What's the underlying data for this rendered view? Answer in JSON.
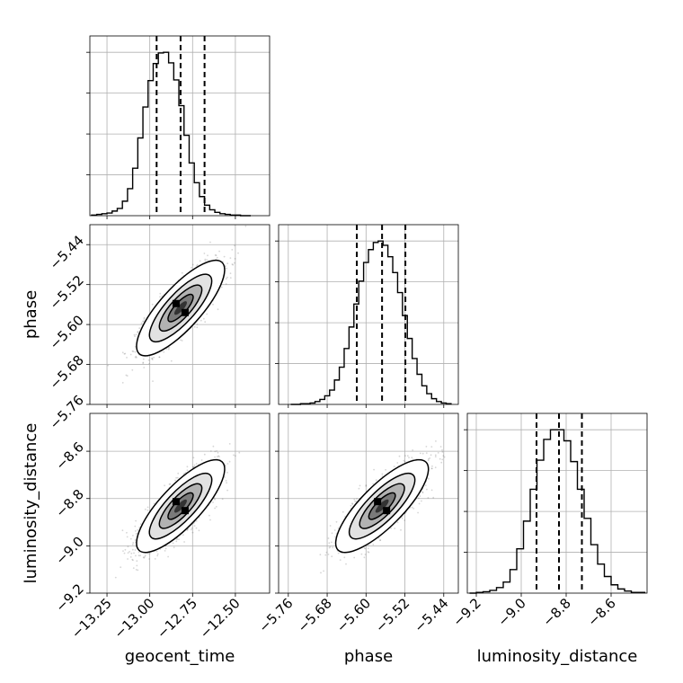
{
  "chart_data": {
    "type": "corner",
    "parameters": [
      "geocent_time",
      "phase",
      "luminosity_distance"
    ],
    "grid": true,
    "quantile_lines": "dashed",
    "histograms": [
      {
        "parameter": "geocent_time",
        "bins_x": [
          -13.34,
          -13.31,
          -13.28,
          -13.25,
          -13.22,
          -13.19,
          -13.16,
          -13.13,
          -13.1,
          -13.07,
          -13.04,
          -13.01,
          -12.98,
          -12.95,
          -12.92,
          -12.89,
          -12.86,
          -12.83,
          -12.8,
          -12.77,
          -12.74,
          -12.71,
          -12.68,
          -12.65,
          -12.62,
          -12.59,
          -12.56,
          -12.53,
          -12.5,
          -12.47,
          -12.44,
          -12.41
        ],
        "counts": [
          1,
          2,
          3,
          4,
          7,
          11,
          22,
          41,
          72,
          118,
          165,
          205,
          231,
          247,
          248,
          232,
          206,
          167,
          122,
          80,
          50,
          29,
          16,
          9,
          5,
          3,
          2,
          1,
          1,
          0,
          0
        ],
        "quantiles": [
          -12.96,
          -12.82,
          -12.68
        ],
        "xlim": [
          -13.35,
          -12.3
        ],
        "xticks": [
          -13.25,
          -13.0,
          -12.75,
          -12.5
        ]
      },
      {
        "parameter": "phase",
        "bins_x": [
          -5.755,
          -5.745,
          -5.735,
          -5.725,
          -5.715,
          -5.705,
          -5.695,
          -5.685,
          -5.675,
          -5.665,
          -5.655,
          -5.645,
          -5.635,
          -5.625,
          -5.615,
          -5.605,
          -5.595,
          -5.585,
          -5.575,
          -5.565,
          -5.555,
          -5.545,
          -5.535,
          -5.525,
          -5.515,
          -5.505,
          -5.495,
          -5.485,
          -5.475,
          -5.465,
          -5.455,
          -5.445,
          -5.435,
          -5.425
        ],
        "counts": [
          0,
          0,
          1,
          1,
          2,
          4,
          7,
          12,
          20,
          34,
          52,
          78,
          108,
          140,
          172,
          198,
          216,
          226,
          228,
          222,
          206,
          184,
          156,
          124,
          92,
          64,
          42,
          26,
          15,
          8,
          4,
          2,
          1
        ],
        "quantiles": [
          -5.619,
          -5.567,
          -5.519
        ],
        "xlim": [
          -5.78,
          -5.41
        ],
        "xticks": [
          -5.76,
          -5.68,
          -5.6,
          -5.52,
          -5.44
        ]
      },
      {
        "parameter": "luminosity_distance",
        "bins_x": [
          -9.23,
          -9.2,
          -9.17,
          -9.14,
          -9.11,
          -9.08,
          -9.05,
          -9.02,
          -8.99,
          -8.96,
          -8.93,
          -8.9,
          -8.87,
          -8.84,
          -8.81,
          -8.78,
          -8.75,
          -8.72,
          -8.69,
          -8.66,
          -8.63,
          -8.6,
          -8.57,
          -8.54,
          -8.51,
          -8.48,
          -8.45
        ],
        "counts": [
          0,
          1,
          2,
          4,
          8,
          16,
          34,
          64,
          104,
          150,
          192,
          222,
          236,
          236,
          220,
          190,
          150,
          108,
          70,
          42,
          24,
          12,
          6,
          3,
          1,
          1
        ],
        "quantiles": [
          -8.932,
          -8.832,
          -8.73
        ],
        "xlim": [
          -9.24,
          -8.44
        ],
        "xticks": [
          -9.2,
          -9.0,
          -8.8,
          -8.6
        ]
      }
    ],
    "scatter_panels": [
      {
        "x": "geocent_time",
        "y": "phase",
        "mean": [
          -12.82,
          -5.567
        ],
        "sd": [
          0.105,
          0.039
        ],
        "correlation": 0.8,
        "ylim": [
          -5.76,
          -5.4
        ],
        "yticks": [
          -5.76,
          -5.68,
          -5.6,
          -5.52,
          -5.44
        ]
      },
      {
        "x": "geocent_time",
        "y": "luminosity_distance",
        "mean": [
          -12.82,
          -8.832
        ],
        "sd": [
          0.105,
          0.08
        ],
        "correlation": 0.8,
        "ylim": [
          -9.2,
          -8.44
        ],
        "yticks": [
          -9.2,
          -9.0,
          -8.8,
          -8.6
        ]
      },
      {
        "x": "phase",
        "y": "luminosity_distance",
        "mean": [
          -5.567,
          -8.832
        ],
        "sd": [
          0.039,
          0.08
        ],
        "correlation": 0.8,
        "ylim": [
          -9.2,
          -8.44
        ],
        "yticks": [
          -9.2,
          -9.0,
          -8.8,
          -8.6
        ]
      }
    ],
    "xlabels": [
      "geocent_time",
      "phase",
      "luminosity_distance"
    ],
    "ylabels": [
      "phase",
      "luminosity_distance"
    ]
  }
}
